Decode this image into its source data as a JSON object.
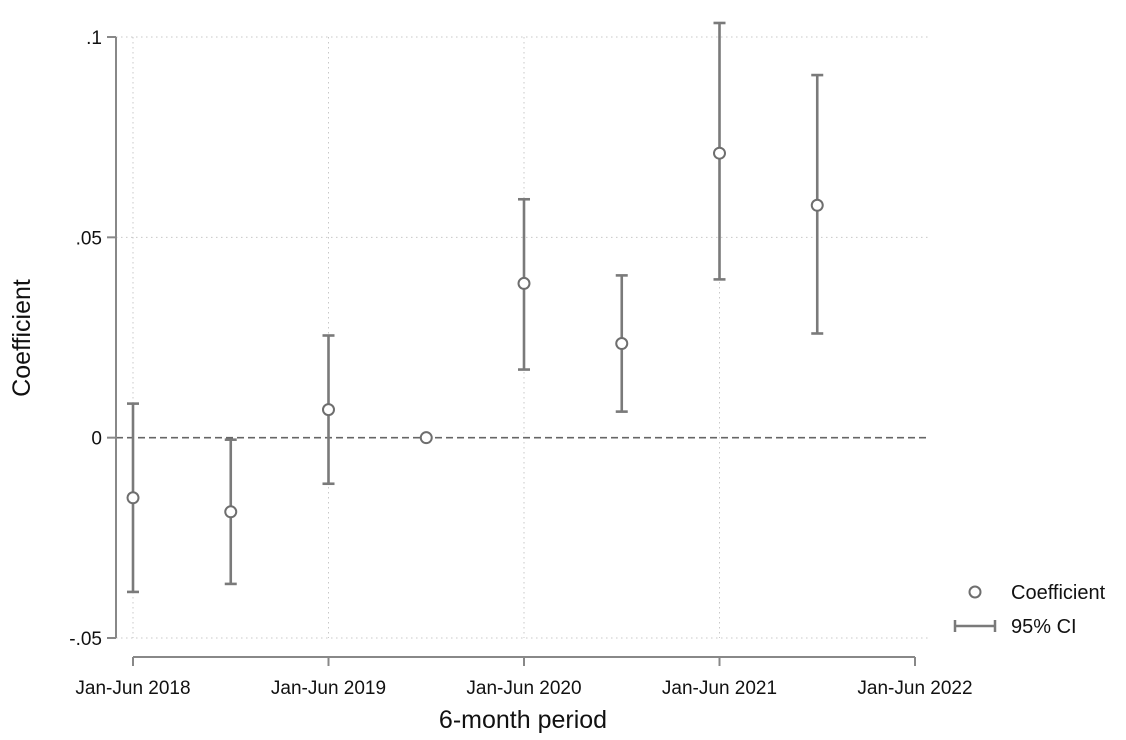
{
  "chart_data": {
    "type": "scatter",
    "title": "",
    "xlabel": "6-month period",
    "ylabel": "Coefficient",
    "x_tick_labels": [
      "Jan-Jun 2018",
      "Jan-Jun 2019",
      "Jan-Jun 2020",
      "Jan-Jun 2021",
      "Jan-Jun 2022"
    ],
    "y_tick_labels": [
      ".1",
      ".05",
      "0",
      "-.05"
    ],
    "y_ticks": [
      0.1,
      0.05,
      0,
      -0.05
    ],
    "ylim": [
      -0.05,
      0.1
    ],
    "grid": true,
    "reference_line_y": 0,
    "series": [
      {
        "name": "Coefficient",
        "x": [
          "Jan-Jun 2018",
          "Jul-Dec 2018",
          "Jan-Jun 2019",
          "Jul-Dec 2019",
          "Jan-Jun 2020",
          "Jul-Dec 2020",
          "Jan-Jun 2021",
          "Jul-Dec 2021"
        ],
        "values": [
          -0.015,
          -0.0185,
          0.007,
          0.0,
          0.0385,
          0.0235,
          0.071,
          0.058
        ],
        "ci_low": [
          -0.0385,
          -0.0365,
          -0.0115,
          0.0,
          0.017,
          0.0065,
          0.0395,
          0.026
        ],
        "ci_high": [
          0.0085,
          -0.0005,
          0.0255,
          0.0,
          0.0595,
          0.0405,
          0.1035,
          0.0905
        ]
      }
    ],
    "legend": {
      "placement": "bottom-right",
      "items": [
        "Coefficient",
        "95% CI"
      ]
    },
    "colors": {
      "marker": "#6e6e6e",
      "ci": "#7a7a7a",
      "grid": "#c8c8c8",
      "axis": "#888888",
      "reference_line": "#666666"
    }
  }
}
